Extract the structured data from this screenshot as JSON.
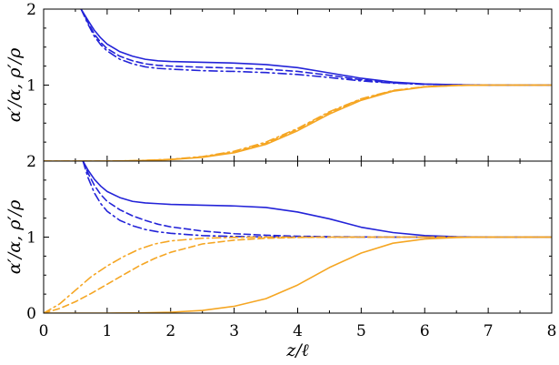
{
  "chart_data": [
    {
      "type": "line",
      "panel": "top",
      "xlabel": "",
      "ylabel": "α′/α, ρ′/ρ",
      "xlim": [
        0,
        8
      ],
      "ylim": [
        0,
        2
      ],
      "x_ticks": [],
      "y_ticks": [
        {
          "v": 1,
          "label": "1"
        },
        {
          "v": 2,
          "label": "2"
        }
      ],
      "colors": {
        "alpha": "#2323d8",
        "rho": "#f5a623"
      },
      "series": [
        {
          "group": "alpha",
          "style": "solid",
          "x": [
            0.59,
            0.7,
            0.8,
            0.9,
            1.0,
            1.2,
            1.4,
            1.6,
            1.8,
            2.0,
            2.5,
            3.0,
            3.5,
            4.0,
            4.5,
            5.0,
            5.5,
            6.0,
            6.5,
            7.0,
            7.5,
            8.0
          ],
          "y": [
            2.0,
            1.85,
            1.72,
            1.62,
            1.54,
            1.44,
            1.38,
            1.34,
            1.32,
            1.31,
            1.3,
            1.29,
            1.27,
            1.23,
            1.16,
            1.09,
            1.04,
            1.015,
            1.005,
            1.0,
            1.0,
            1.0
          ]
        },
        {
          "group": "alpha",
          "style": "dashed",
          "x": [
            0.59,
            0.7,
            0.8,
            0.9,
            1.0,
            1.2,
            1.4,
            1.6,
            1.8,
            2.0,
            2.5,
            3.0,
            3.5,
            4.0,
            4.5,
            5.0,
            5.5,
            6.0,
            6.5,
            7.0,
            7.5,
            8.0
          ],
          "y": [
            2.0,
            1.82,
            1.67,
            1.56,
            1.48,
            1.38,
            1.32,
            1.28,
            1.26,
            1.25,
            1.235,
            1.225,
            1.21,
            1.18,
            1.13,
            1.07,
            1.03,
            1.012,
            1.004,
            1.0,
            1.0,
            1.0
          ]
        },
        {
          "group": "alpha",
          "style": "dashdot",
          "x": [
            0.59,
            0.7,
            0.8,
            0.9,
            1.0,
            1.2,
            1.4,
            1.6,
            1.8,
            2.0,
            2.5,
            3.0,
            3.5,
            4.0,
            4.5,
            5.0,
            5.5,
            6.0,
            6.5,
            7.0,
            7.5,
            8.0
          ],
          "y": [
            2.0,
            1.8,
            1.64,
            1.53,
            1.45,
            1.34,
            1.28,
            1.24,
            1.22,
            1.21,
            1.19,
            1.18,
            1.165,
            1.14,
            1.1,
            1.055,
            1.025,
            1.01,
            1.003,
            1.0,
            1.0,
            1.0
          ]
        },
        {
          "group": "rho",
          "style": "solid",
          "x": [
            0,
            1.0,
            1.5,
            2.0,
            2.5,
            3.0,
            3.5,
            4.0,
            4.5,
            5.0,
            5.5,
            6.0,
            6.5,
            7.0,
            7.5,
            8.0
          ],
          "y": [
            0,
            0.0,
            0.005,
            0.02,
            0.05,
            0.11,
            0.22,
            0.4,
            0.62,
            0.8,
            0.92,
            0.975,
            0.995,
            1.0,
            1.0,
            1.0
          ]
        },
        {
          "group": "rho",
          "style": "dashed",
          "x": [
            0,
            1.0,
            1.5,
            2.0,
            2.5,
            3.0,
            3.5,
            4.0,
            4.5,
            5.0,
            5.5,
            6.0,
            6.5,
            7.0,
            7.5,
            8.0
          ],
          "y": [
            0,
            0.0,
            0.006,
            0.022,
            0.055,
            0.12,
            0.235,
            0.42,
            0.64,
            0.815,
            0.925,
            0.978,
            0.996,
            1.0,
            1.0,
            1.0
          ]
        },
        {
          "group": "rho",
          "style": "dashdot",
          "x": [
            0,
            1.0,
            1.5,
            2.0,
            2.5,
            3.0,
            3.5,
            4.0,
            4.5,
            5.0,
            5.5,
            6.0,
            6.5,
            7.0,
            7.5,
            8.0
          ],
          "y": [
            0,
            0.0,
            0.007,
            0.024,
            0.06,
            0.13,
            0.25,
            0.43,
            0.65,
            0.82,
            0.93,
            0.98,
            0.997,
            1.0,
            1.0,
            1.0
          ]
        }
      ]
    },
    {
      "type": "line",
      "panel": "bottom",
      "xlabel": "z/ℓ",
      "ylabel": "α′/α, ρ′/ρ",
      "xlim": [
        0,
        8
      ],
      "ylim": [
        0,
        2
      ],
      "x_ticks": [
        {
          "v": 0,
          "label": "0"
        },
        {
          "v": 1,
          "label": "1"
        },
        {
          "v": 2,
          "label": "2"
        },
        {
          "v": 3,
          "label": "3"
        },
        {
          "v": 4,
          "label": "4"
        },
        {
          "v": 5,
          "label": "5"
        },
        {
          "v": 6,
          "label": "6"
        },
        {
          "v": 7,
          "label": "7"
        },
        {
          "v": 8,
          "label": "8"
        }
      ],
      "y_ticks": [
        {
          "v": 0,
          "label": "0"
        },
        {
          "v": 1,
          "label": "1"
        },
        {
          "v": 2,
          "label": "2"
        }
      ],
      "colors": {
        "alpha": "#2323d8",
        "rho": "#f5a623"
      },
      "series": [
        {
          "group": "alpha",
          "style": "solid",
          "x": [
            0.62,
            0.7,
            0.8,
            0.9,
            1.0,
            1.2,
            1.4,
            1.6,
            1.8,
            2.0,
            2.5,
            3.0,
            3.5,
            4.0,
            4.5,
            5.0,
            5.5,
            6.0,
            6.5,
            7.0,
            7.5,
            8.0
          ],
          "y": [
            2.0,
            1.88,
            1.76,
            1.67,
            1.6,
            1.52,
            1.47,
            1.45,
            1.44,
            1.43,
            1.42,
            1.41,
            1.39,
            1.33,
            1.24,
            1.13,
            1.06,
            1.02,
            1.005,
            1.0,
            1.0,
            1.0
          ]
        },
        {
          "group": "alpha",
          "style": "dashed",
          "x": [
            0.62,
            0.7,
            0.8,
            0.9,
            1.0,
            1.2,
            1.4,
            1.6,
            1.8,
            2.0,
            2.5,
            3.0,
            3.5,
            4.0,
            4.5,
            5.0,
            5.5,
            6.0,
            6.5,
            7.0,
            7.5,
            8.0
          ],
          "y": [
            2.0,
            1.84,
            1.68,
            1.56,
            1.47,
            1.36,
            1.28,
            1.22,
            1.17,
            1.135,
            1.08,
            1.045,
            1.025,
            1.012,
            1.005,
            1.002,
            1.0,
            1.0,
            1.0,
            1.0,
            1.0,
            1.0
          ]
        },
        {
          "group": "alpha",
          "style": "dashdot",
          "x": [
            0.62,
            0.7,
            0.8,
            0.9,
            1.0,
            1.2,
            1.4,
            1.6,
            1.8,
            2.0,
            2.5,
            3.0,
            3.5,
            4.0,
            4.5,
            5.0,
            5.5,
            6.0,
            6.5,
            7.0,
            7.5,
            8.0
          ],
          "y": [
            2.0,
            1.78,
            1.58,
            1.44,
            1.34,
            1.22,
            1.15,
            1.1,
            1.07,
            1.05,
            1.02,
            1.008,
            1.003,
            1.001,
            1.0,
            1.0,
            1.0,
            1.0,
            1.0,
            1.0,
            1.0,
            1.0
          ]
        },
        {
          "group": "rho",
          "style": "solid",
          "x": [
            0,
            1.0,
            1.5,
            2.0,
            2.5,
            3.0,
            3.5,
            4.0,
            4.5,
            5.0,
            5.5,
            6.0,
            6.5,
            7.0,
            7.5,
            8.0
          ],
          "y": [
            0,
            0.0,
            0.003,
            0.012,
            0.035,
            0.09,
            0.19,
            0.37,
            0.6,
            0.79,
            0.92,
            0.975,
            0.995,
            1.0,
            1.0,
            1.0
          ]
        },
        {
          "group": "rho",
          "style": "dashed",
          "x": [
            0,
            0.25,
            0.5,
            0.75,
            1.0,
            1.25,
            1.5,
            1.75,
            2.0,
            2.5,
            3.0,
            3.5,
            4.0,
            4.5,
            5.0,
            6.0,
            7.0,
            8.0
          ],
          "y": [
            0,
            0.06,
            0.15,
            0.26,
            0.38,
            0.5,
            0.62,
            0.72,
            0.8,
            0.91,
            0.96,
            0.985,
            0.995,
            1.0,
            1.0,
            1.0,
            1.0,
            1.0
          ]
        },
        {
          "group": "rho",
          "style": "dashdot",
          "x": [
            0,
            0.25,
            0.5,
            0.75,
            1.0,
            1.25,
            1.5,
            1.75,
            2.0,
            2.5,
            3.0,
            3.5,
            4.0,
            5.0,
            6.0,
            7.0,
            8.0
          ],
          "y": [
            0,
            0.12,
            0.3,
            0.48,
            0.62,
            0.74,
            0.84,
            0.91,
            0.95,
            0.985,
            0.996,
            1.0,
            1.0,
            1.0,
            1.0,
            1.0,
            1.0
          ]
        }
      ]
    }
  ]
}
